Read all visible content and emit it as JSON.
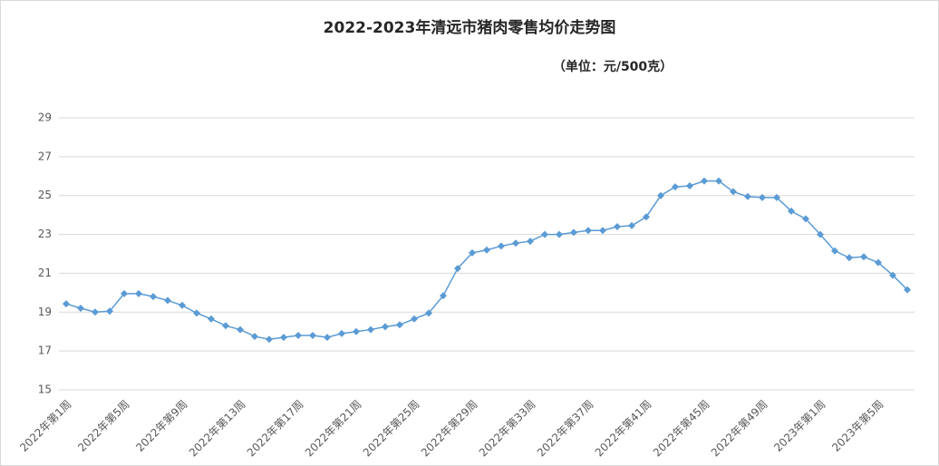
{
  "chart_data": {
    "type": "line",
    "title": "2022-2023年清远市猪肉零售均价走势图",
    "subtitle": "（单位：元/500克）",
    "categories": [
      "2022年第1周",
      null,
      null,
      null,
      "2022年第5周",
      null,
      null,
      null,
      "2022年第9周",
      null,
      null,
      null,
      "2022年第13周",
      null,
      null,
      null,
      "2022年第17周",
      null,
      null,
      null,
      "2022年第21周",
      null,
      null,
      null,
      "2022年第25周",
      null,
      null,
      null,
      "2022年第29周",
      null,
      null,
      null,
      "2022年第33周",
      null,
      null,
      null,
      "2022年第37周",
      null,
      null,
      null,
      "2022年第41周",
      null,
      null,
      null,
      "2022年第45周",
      null,
      null,
      null,
      "2022年第49周",
      null,
      null,
      null,
      "2023年第1周",
      null,
      null,
      null,
      "2023年第5周",
      null,
      null
    ],
    "series": [
      {
        "color": "#5b9bd5",
        "values": [
          19.43,
          19.2,
          19.0,
          19.05,
          19.95,
          19.95,
          19.8,
          19.6,
          19.35,
          18.95,
          18.65,
          18.3,
          18.1,
          17.75,
          17.6,
          17.7,
          17.8,
          17.8,
          17.7,
          17.9,
          18.0,
          18.1,
          18.25,
          18.35,
          18.65,
          18.95,
          19.85,
          21.25,
          22.05,
          22.2,
          22.4,
          22.55,
          22.65,
          23.0,
          23.0,
          23.1,
          23.2,
          23.2,
          23.4,
          23.45,
          23.9,
          25.0,
          25.45,
          25.5,
          25.75,
          25.75,
          25.2,
          24.95,
          24.9,
          24.9,
          24.2,
          23.8,
          23.0,
          22.15,
          21.8,
          21.85,
          21.55,
          20.9,
          20.15
        ]
      }
    ],
    "ylim": [
      15,
      29
    ],
    "yticks": [
      15,
      17,
      19,
      21,
      23,
      25,
      27,
      29
    ],
    "grid": true
  }
}
